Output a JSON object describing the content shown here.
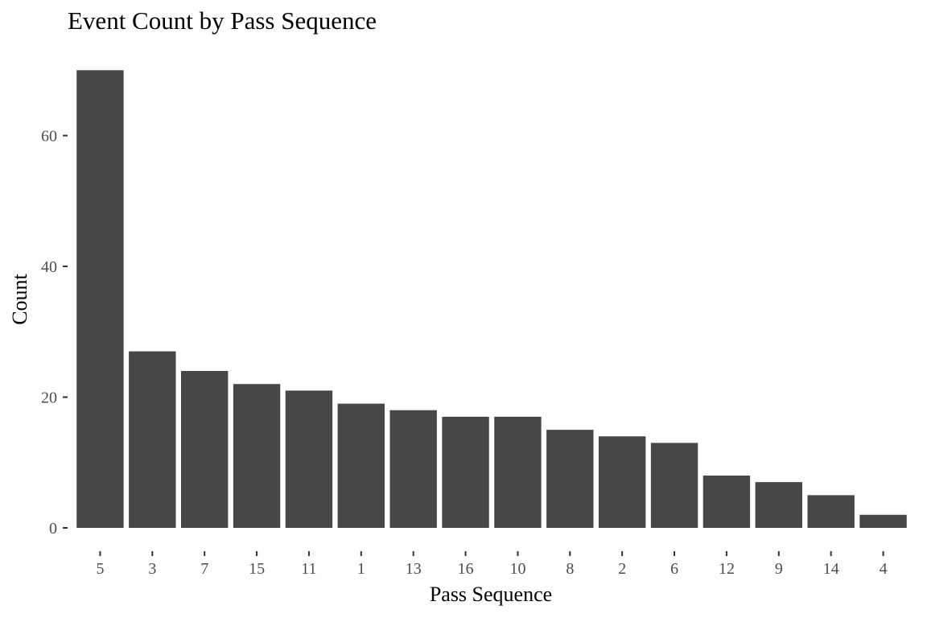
{
  "chart_data": {
    "type": "bar",
    "title": "Event Count by Pass Sequence",
    "xlabel": "Pass Sequence",
    "ylabel": "Count",
    "categories": [
      "5",
      "3",
      "7",
      "15",
      "11",
      "1",
      "13",
      "16",
      "10",
      "8",
      "2",
      "6",
      "12",
      "9",
      "14",
      "4"
    ],
    "values": [
      70,
      27,
      24,
      22,
      21,
      19,
      18,
      17,
      17,
      15,
      14,
      13,
      8,
      7,
      5,
      2
    ],
    "yticks": [
      0,
      20,
      40,
      60
    ],
    "ylim": [
      0,
      70
    ],
    "grid": false,
    "legend": "none",
    "bar_color": "#474747"
  }
}
